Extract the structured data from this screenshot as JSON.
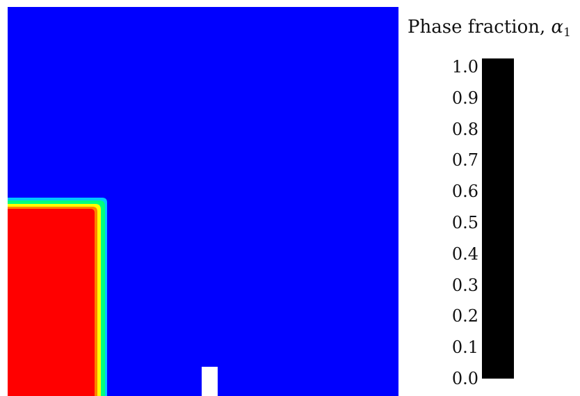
{
  "colorbar": {
    "title_prefix": "Phase fraction, ",
    "title_symbol": "α",
    "title_subscript": "1",
    "ticks": [
      "1.0",
      "0.9",
      "0.8",
      "0.7",
      "0.6",
      "0.5",
      "0.4",
      "0.3",
      "0.2",
      "0.1",
      "0.0"
    ],
    "bar_color": "#000000"
  },
  "field": {
    "background_color": "#0000ff",
    "phase1_color": "#ff0000",
    "obstacle_color": "#ffffff",
    "interface_colors": [
      "#ffff00",
      "#00ff88",
      "#00d0ff"
    ]
  }
}
